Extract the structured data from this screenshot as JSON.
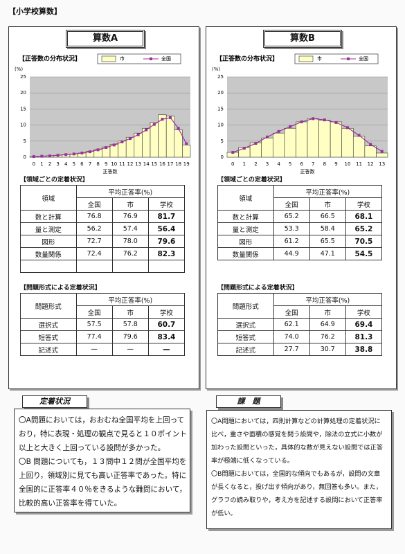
{
  "header": "【小学校算数】",
  "chart_data": [
    {
      "type": "bar",
      "title": "【正答数の分布状況】",
      "ylabel": "(%)",
      "xlabel": "正答数",
      "categories": [
        "0",
        "1",
        "2",
        "3",
        "4",
        "5",
        "6",
        "7",
        "8",
        "9",
        "10",
        "11",
        "12",
        "13",
        "14",
        "15",
        "16",
        "17",
        "18",
        "19"
      ],
      "series": [
        {
          "name": "市",
          "type": "bar",
          "color": "#ffffc4",
          "values": [
            0.2,
            0.3,
            0.4,
            0.6,
            0.8,
            1.0,
            1.3,
            1.8,
            2.4,
            3.2,
            4.0,
            5.0,
            6.2,
            7.5,
            9.0,
            10.8,
            13.2,
            12.8,
            8.5,
            3.8
          ]
        },
        {
          "name": "全国",
          "type": "line",
          "color": "#993399",
          "values": [
            0.2,
            0.3,
            0.4,
            0.6,
            0.8,
            1.0,
            1.3,
            1.7,
            2.3,
            3.0,
            3.8,
            4.8,
            5.8,
            7.0,
            8.5,
            10.2,
            11.8,
            12.3,
            9.0,
            4.2
          ]
        }
      ],
      "ylim": [
        0,
        25
      ],
      "yticks": [
        0,
        5,
        10,
        15,
        20,
        25
      ],
      "grid": true
    },
    {
      "type": "bar",
      "title": "【正答数の分布状況】",
      "ylabel": "(%)",
      "xlabel": "正答数",
      "categories": [
        "0",
        "1",
        "2",
        "3",
        "4",
        "5",
        "6",
        "7",
        "8",
        "9",
        "10",
        "11",
        "12",
        "13"
      ],
      "series": [
        {
          "name": "市",
          "type": "bar",
          "color": "#ffffc4",
          "values": [
            1.5,
            3.0,
            4.5,
            6.0,
            7.5,
            9.0,
            11.0,
            12.0,
            11.5,
            11.0,
            9.0,
            6.5,
            3.5,
            1.3
          ]
        },
        {
          "name": "全国",
          "type": "line",
          "color": "#993399",
          "values": [
            1.5,
            2.8,
            4.3,
            6.3,
            8.0,
            9.5,
            11.0,
            12.0,
            11.6,
            10.8,
            9.2,
            6.8,
            4.0,
            1.8
          ]
        }
      ],
      "ylim": [
        0,
        25
      ],
      "yticks": [
        0,
        5,
        10,
        15,
        20,
        25
      ],
      "grid": true
    }
  ],
  "panels": [
    {
      "title": "算数A",
      "domain_table": {
        "heading": "【領域ごとの定着状況】",
        "row_header": "領域",
        "group_header": "平均正答率(%)",
        "columns": [
          "全国",
          "市",
          "学校"
        ],
        "rows": [
          [
            "数と計算",
            "76.8",
            "76.9",
            "81.7"
          ],
          [
            "量と測定",
            "56.2",
            "57.4",
            "56.4"
          ],
          [
            "図形",
            "72.7",
            "78.0",
            "79.6"
          ],
          [
            "数量関係",
            "72.4",
            "76.2",
            "82.3"
          ]
        ]
      },
      "format_table": {
        "heading": "【問題形式による定着状況】",
        "row_header": "問題形式",
        "group_header": "平均正答率(%)",
        "columns": [
          "全国",
          "市",
          "学校"
        ],
        "rows": [
          [
            "選択式",
            "57.5",
            "57.8",
            "60.7"
          ],
          [
            "短答式",
            "77.4",
            "79.6",
            "83.4"
          ],
          [
            "記述式",
            "—",
            "—",
            "—"
          ]
        ]
      }
    },
    {
      "title": "算数B",
      "domain_table": {
        "heading": "【領域ごとの定着状況】",
        "row_header": "領域",
        "group_header": "平均正答率(%)",
        "columns": [
          "全国",
          "市",
          "学校"
        ],
        "rows": [
          [
            "数と計算",
            "65.2",
            "66.5",
            "68.1"
          ],
          [
            "量と測定",
            "53.3",
            "58.4",
            "65.2"
          ],
          [
            "図形",
            "61.2",
            "65.5",
            "70.5"
          ],
          [
            "数量関係",
            "44.9",
            "47.1",
            "54.5"
          ]
        ]
      },
      "format_table": {
        "heading": "【問題形式による定着状況】",
        "row_header": "問題形式",
        "group_header": "平均正答率(%)",
        "columns": [
          "全国",
          "市",
          "学校"
        ],
        "rows": [
          [
            "選択式",
            "62.1",
            "64.9",
            "69.4"
          ],
          [
            "短答式",
            "74.0",
            "76.2",
            "81.3"
          ],
          [
            "記述式",
            "27.7",
            "30.7",
            "38.8"
          ]
        ]
      }
    }
  ],
  "summary": [
    {
      "title": "定着状況",
      "lines": [
        "〇A問題においては，おおむね全国平均を上回って",
        "おり，特に表現・処理の観点で見ると１０ポイント",
        "以上と大きく上回っている設問が多かった。",
        "〇B 問題についても，１３問中１２問が全国平均を",
        "上回り，領域別に見ても高い正答率であった。特に",
        "全国的に正答率４０％をきるような難問において，",
        "比較的高い正答率を得ていた。"
      ]
    },
    {
      "title": "課　題",
      "lines": [
        "〇A問題においては，四則計算などの計算処理の定着状況に",
        "比べ，重さや面積の感覚を問う設問や，除法の立式に小数が",
        "加わった設問といった，具体的な数が見えない設問では正答",
        "率が極端に低くなっている。",
        "〇B問題においては，全国的な傾向でもあるが，設問の文章",
        "が長くなると，投げ出す傾向があり，無回答も多い。また，",
        "グラフの読み取りや，考え方を記述する設問において正答率",
        "が低い。"
      ]
    }
  ]
}
